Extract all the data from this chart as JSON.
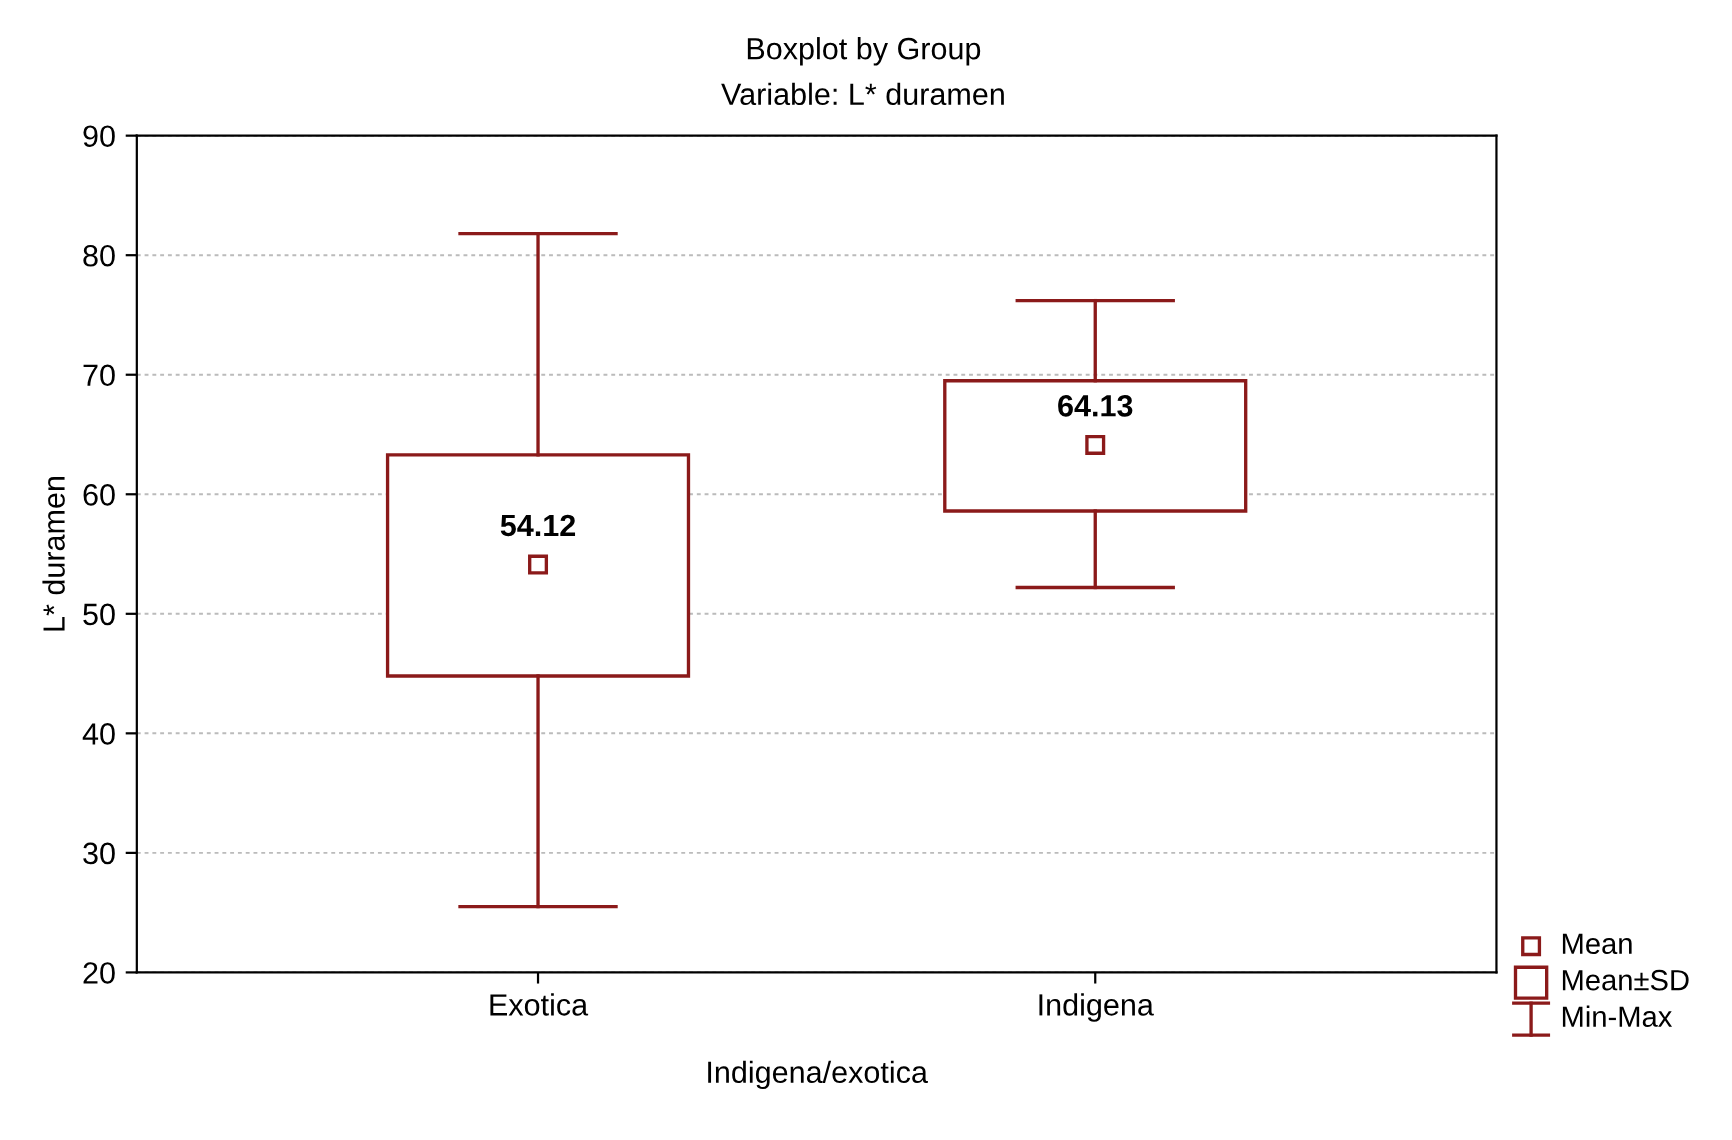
{
  "chart_data": {
    "type": "box",
    "title": "Boxplot by Group",
    "subtitle": "Variable: L* duramen",
    "xlabel": "Indigena/exotica",
    "ylabel": "L* duramen",
    "categories": [
      "Exotica",
      "Indigena"
    ],
    "boxes": [
      {
        "low": 25.5,
        "q1": 44.8,
        "q3": 63.3,
        "high": 81.8,
        "mean": 54.12
      },
      {
        "low": 52.2,
        "q1": 58.6,
        "q3": 69.5,
        "high": 76.2,
        "mean": 64.13
      }
    ],
    "color": "#8b1a1a",
    "ylim": [
      20,
      90
    ],
    "yticks": [
      20,
      30,
      40,
      50,
      60,
      70,
      80,
      90
    ],
    "grid": "y",
    "annotations": [
      "54.12",
      "64.13",
      "Mean",
      "Mean±SD",
      "Min-Max"
    ]
  }
}
